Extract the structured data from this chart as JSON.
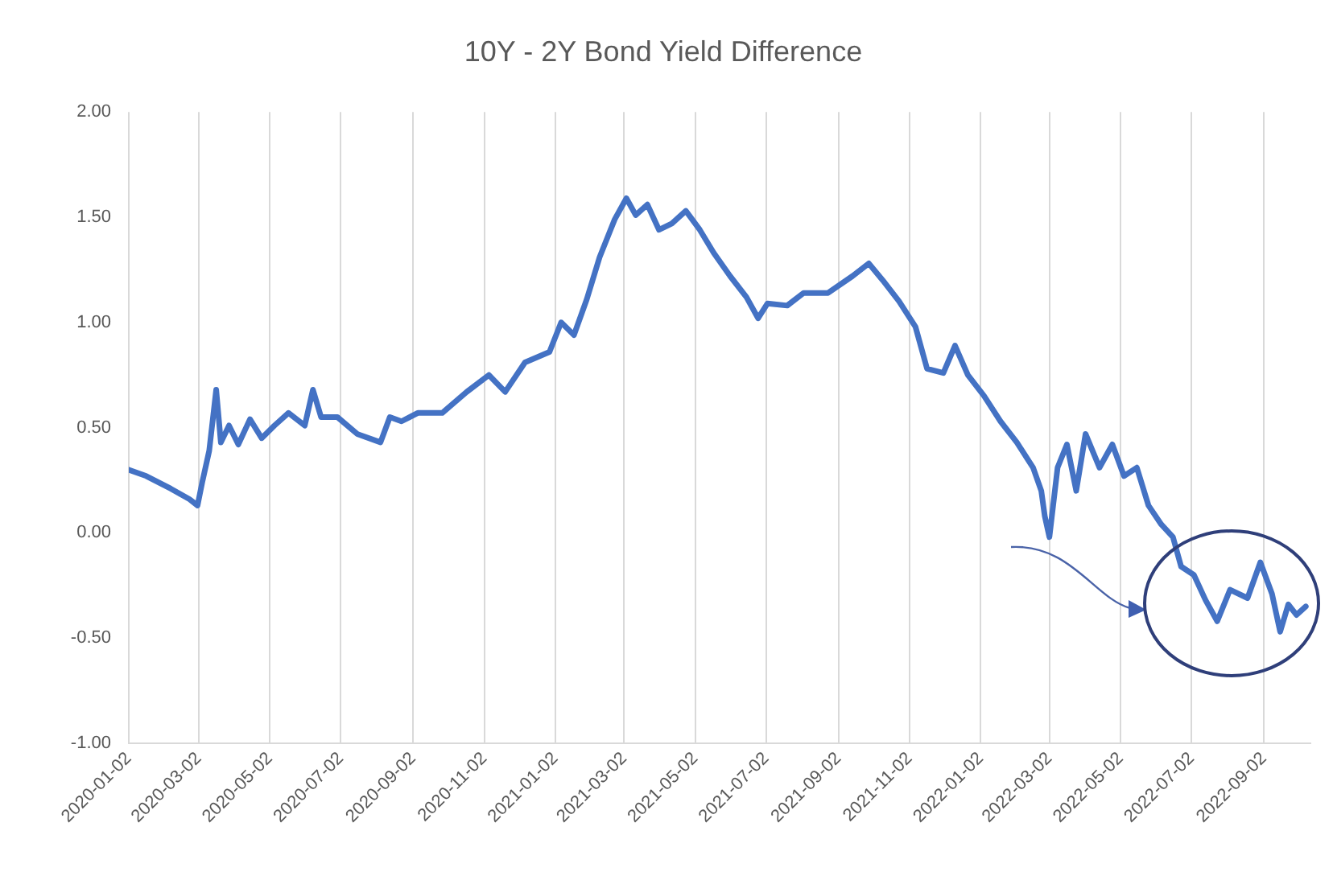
{
  "chart_data": {
    "type": "line",
    "title": "10Y - 2Y Bond Yield Difference",
    "x": [
      "2020-01-02",
      "2020-01-17",
      "2020-02-07",
      "2020-02-23",
      "2020-03-01",
      "2020-03-05",
      "2020-03-11",
      "2020-03-17",
      "2020-03-21",
      "2020-03-28",
      "2020-04-05",
      "2020-04-15",
      "2020-04-25",
      "2020-05-06",
      "2020-05-18",
      "2020-06-01",
      "2020-06-08",
      "2020-06-15",
      "2020-06-29",
      "2020-07-16",
      "2020-08-05",
      "2020-08-13",
      "2020-08-23",
      "2020-09-06",
      "2020-09-27",
      "2020-10-18",
      "2020-11-06",
      "2020-11-20",
      "2020-12-07",
      "2020-12-28",
      "2021-01-07",
      "2021-01-18",
      "2021-01-29",
      "2021-02-09",
      "2021-02-22",
      "2021-03-04",
      "2021-03-12",
      "2021-03-22",
      "2021-04-01",
      "2021-04-12",
      "2021-04-24",
      "2021-05-06",
      "2021-05-18",
      "2021-06-01",
      "2021-06-15",
      "2021-06-25",
      "2021-07-03",
      "2021-07-20",
      "2021-08-03",
      "2021-08-24",
      "2021-09-14",
      "2021-09-28",
      "2021-10-10",
      "2021-10-24",
      "2021-11-07",
      "2021-11-17",
      "2021-12-01",
      "2021-12-11",
      "2021-12-22",
      "2022-01-05",
      "2022-01-19",
      "2022-02-02",
      "2022-02-16",
      "2022-02-23",
      "2022-02-26",
      "2022-03-02",
      "2022-03-09",
      "2022-03-17",
      "2022-03-25",
      "2022-04-02",
      "2022-04-14",
      "2022-04-25",
      "2022-05-05",
      "2022-05-16",
      "2022-05-26",
      "2022-06-06",
      "2022-06-16",
      "2022-06-23",
      "2022-07-04",
      "2022-07-14",
      "2022-07-24",
      "2022-08-04",
      "2022-08-19",
      "2022-08-30",
      "2022-09-09",
      "2022-09-16",
      "2022-09-23",
      "2022-09-30",
      "2022-10-08"
    ],
    "series": [
      {
        "color": "#4472c4",
        "values": [
          0.3,
          0.27,
          0.21,
          0.16,
          0.13,
          0.24,
          0.39,
          0.68,
          0.43,
          0.51,
          0.42,
          0.54,
          0.45,
          0.51,
          0.57,
          0.51,
          0.68,
          0.55,
          0.55,
          0.47,
          0.43,
          0.55,
          0.53,
          0.57,
          0.57,
          0.67,
          0.75,
          0.67,
          0.81,
          0.86,
          1.0,
          0.94,
          1.11,
          1.31,
          1.49,
          1.59,
          1.51,
          1.56,
          1.44,
          1.47,
          1.53,
          1.44,
          1.33,
          1.22,
          1.12,
          1.02,
          1.09,
          1.08,
          1.14,
          1.14,
          1.22,
          1.28,
          1.2,
          1.1,
          0.98,
          0.78,
          0.76,
          0.89,
          0.75,
          0.65,
          0.53,
          0.43,
          0.31,
          0.2,
          0.08,
          -0.02,
          0.31,
          0.42,
          0.2,
          0.47,
          0.31,
          0.42,
          0.27,
          0.31,
          0.13,
          0.04,
          -0.02,
          -0.16,
          -0.2,
          -0.32,
          -0.42,
          -0.27,
          -0.31,
          -0.14,
          -0.29,
          -0.47,
          -0.34,
          -0.39,
          -0.35
        ]
      }
    ],
    "xlim": [
      "2020-01-02",
      "2022-10-12"
    ],
    "xticks": [
      "2020-01-02",
      "2020-03-02",
      "2020-05-02",
      "2020-07-02",
      "2020-09-02",
      "2020-11-02",
      "2021-01-02",
      "2021-03-02",
      "2021-05-02",
      "2021-07-02",
      "2021-09-02",
      "2021-11-02",
      "2022-01-02",
      "2022-03-02",
      "2022-05-02",
      "2022-07-02",
      "2022-09-02"
    ],
    "ylim": [
      -1,
      2
    ],
    "yticks": [
      {
        "value": -1,
        "label": "-1.00"
      },
      {
        "value": -0.5,
        "label": "-0.50"
      },
      {
        "value": 0,
        "label": "0.00"
      },
      {
        "value": 0.5,
        "label": "0.50"
      },
      {
        "value": 1,
        "label": "1.00"
      },
      {
        "value": 1.5,
        "label": "1.50"
      },
      {
        "value": 2,
        "label": "2.00"
      }
    ],
    "grid": "x",
    "legend": false,
    "marker": "none",
    "line_style": "solid"
  }
}
